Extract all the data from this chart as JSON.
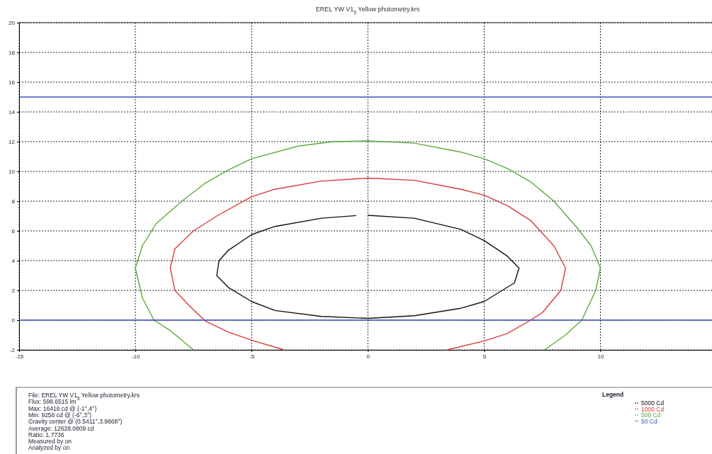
{
  "chart_data": {
    "type": "line",
    "title": "EREL YW V1$_{5}$ Yellow photometry.krs",
    "xlim": [
      -15,
      14.8
    ],
    "xticks": [
      -15,
      -10,
      -5,
      0,
      5,
      10
    ],
    "ylim": [
      -2,
      20
    ],
    "yticks": [
      -2,
      0,
      2,
      4,
      6,
      8,
      10,
      12,
      14,
      16,
      18,
      20
    ],
    "grid": true,
    "legend": "bottom right",
    "legend_title": "Legend",
    "marker": "none",
    "line_style": "solid",
    "series": [
      {
        "name": "5000 Cd",
        "color": "#111111",
        "x": [
          0,
          2,
          4,
          5,
          6,
          6.5,
          6.3,
          5,
          4,
          2,
          0,
          -2,
          -4,
          -5,
          -6,
          -6.5,
          -6.4,
          -6,
          -5,
          -4,
          -2,
          -0.5
        ],
        "values": [
          7.05,
          6.85,
          6.1,
          5.35,
          4.3,
          3.5,
          2.5,
          1.25,
          0.8,
          0.3,
          0.12,
          0.25,
          0.65,
          1.25,
          2.2,
          3.0,
          4.0,
          4.7,
          5.75,
          6.3,
          6.85,
          7.03
        ]
      },
      {
        "name": "1000 Cd",
        "color": "#d93a3a",
        "x": [
          -3.6,
          -5,
          -6,
          -7,
          -7.7,
          -8.3,
          -8.5,
          -8.3,
          -7.5,
          -6.5,
          -5,
          -4,
          -2,
          0,
          2,
          4,
          5,
          6,
          7,
          8,
          8.5,
          8.3,
          7.5,
          7,
          6,
          5,
          3.4
        ],
        "values": [
          -2,
          -1.35,
          -0.8,
          -0.05,
          1,
          2,
          3.5,
          4.8,
          6,
          7,
          8.3,
          8.8,
          9.35,
          9.55,
          9.4,
          8.8,
          8.4,
          7.7,
          6.7,
          5,
          3.5,
          2,
          0.5,
          0,
          -0.9,
          -1.4,
          -2
        ]
      },
      {
        "name": "500 Cd",
        "color": "#5aaa3a",
        "x": [
          -7.5,
          -8.5,
          -9.2,
          -9.7,
          -10,
          -9.7,
          -9.1,
          -8,
          -7,
          -6,
          -5,
          -3,
          -1.5,
          0,
          2,
          4,
          5,
          6,
          7,
          8,
          9,
          9.6,
          10,
          9.8,
          9.2,
          8.5,
          7.6
        ],
        "values": [
          -2,
          -0.7,
          0,
          1.5,
          3.5,
          5,
          6.5,
          8,
          9.2,
          10.1,
          10.85,
          11.7,
          12.0,
          12.05,
          11.9,
          11.3,
          10.85,
          10.2,
          9.3,
          8,
          6.2,
          5,
          3.5,
          2,
          0,
          -1,
          -2
        ]
      },
      {
        "name": "50 Cd",
        "color": "#3b55b8",
        "x": [
          -15,
          14.8
        ],
        "values": [
          15,
          15
        ]
      },
      {
        "color": "#3b55b8",
        "x": [
          -15,
          14.8
        ],
        "values": [
          0,
          0
        ]
      }
    ],
    "annotations": [
      "File: EREL YW V1$_{5}$ Yellow photometry.krs",
      "Flux: 598.6515 lm",
      "Max: 16416 cd @ (-1°,4°)",
      "Min: 9256 cd @ (-6°,3°)",
      "Gravity center @ (0.5411°,3.9668°)",
      "Average: 12628.0809 cd",
      "Ratio: 1.7736",
      "Measured by   on",
      "Analyzed by   on"
    ]
  }
}
